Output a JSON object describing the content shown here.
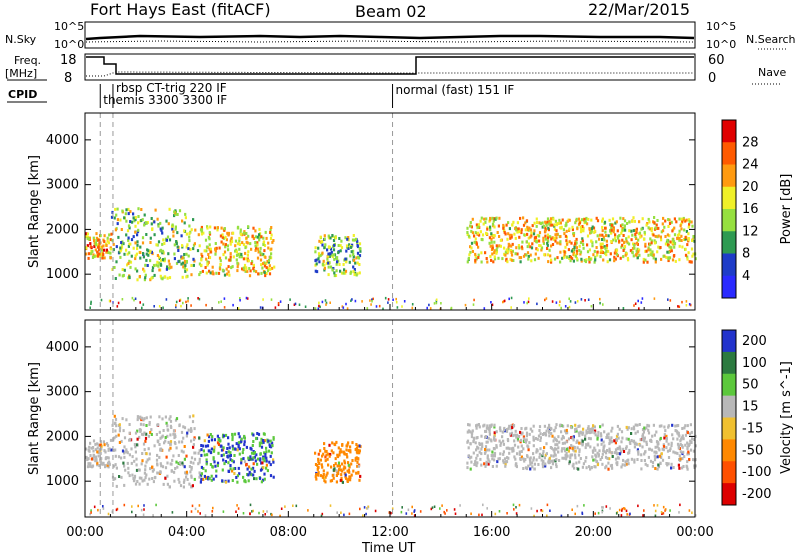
{
  "header": {
    "station": "Fort Hays East (fitACF)",
    "beam": "Beam 02",
    "date": "22/Mar/2015"
  },
  "panels": {
    "nsky_label": "N.Sky",
    "nsearch_label": "N.Search",
    "nsky_ticks": [
      "10^5",
      "10^0"
    ],
    "nsearch_ticks": [
      "10^5",
      "10^0"
    ],
    "freq_label_1": "Freq.",
    "freq_label_2": "[MHz]",
    "freq_ticks": [
      "18",
      "8"
    ],
    "nave_label": "Nave",
    "nave_ticks": [
      "60",
      "0"
    ],
    "cpid_label": "CPID",
    "cpid_modes": [
      {
        "text": "rbsp CT-trig 220 IF",
        "start_hour": 1.1
      },
      {
        "text": "themis 3300 3300 IF",
        "start_hour": 0.6
      },
      {
        "text": "normal (fast) 151 IF",
        "start_hour": 12.1
      }
    ]
  },
  "colors": {
    "power": [
      "#2a2aff",
      "#1e3cc8",
      "#2e9a52",
      "#96e040",
      "#f0f028",
      "#ff9a10",
      "#ff5a00",
      "#e00000"
    ],
    "velocity": [
      "#2233cc",
      "#2c7a40",
      "#5cc83c",
      "#b8b8b8",
      "#f0c030",
      "#ff8800",
      "#ff5000",
      "#dd0000"
    ]
  },
  "chart_data": [
    {
      "type": "heatmap",
      "title": "Power",
      "xlabel": "",
      "ylabel": "Slant Range [km]",
      "xlim": [
        0,
        24
      ],
      "ylim": [
        200,
        4600
      ],
      "x_tick_labels": [
        "00:00",
        "04:00",
        "08:00",
        "12:00",
        "16:00",
        "20:00",
        "00:00"
      ],
      "y_tick_labels": [
        "1000",
        "2000",
        "3000",
        "4000"
      ],
      "y_ticks": [
        1000,
        2000,
        3000,
        4000
      ],
      "colorbar_label": "Power [dB]",
      "colorbar_ticks": [
        "4",
        "8",
        "12",
        "16",
        "20",
        "24",
        "28"
      ],
      "echo_bands": [
        {
          "t0": 0.0,
          "t1": 1.0,
          "r0": 1350,
          "r1": 1950,
          "level": 0.65
        },
        {
          "t0": 1.0,
          "t1": 4.3,
          "r0": 900,
          "r1": 2500,
          "level": 0.45
        },
        {
          "t0": 4.4,
          "t1": 7.4,
          "r0": 1000,
          "r1": 2100,
          "level": 0.6
        },
        {
          "t0": 9.0,
          "t1": 10.8,
          "r0": 1000,
          "r1": 1900,
          "level": 0.4
        },
        {
          "t0": 15.0,
          "t1": 24.0,
          "r0": 1300,
          "r1": 2300,
          "level": 0.6
        }
      ]
    },
    {
      "type": "heatmap",
      "title": "Velocity",
      "xlabel": "Time UT",
      "ylabel": "Slant Range [km]",
      "xlim": [
        0,
        24
      ],
      "ylim": [
        200,
        4600
      ],
      "x_tick_labels": [
        "00:00",
        "04:00",
        "08:00",
        "12:00",
        "16:00",
        "20:00",
        "00:00"
      ],
      "y_tick_labels": [
        "1000",
        "2000",
        "3000",
        "4000"
      ],
      "y_ticks": [
        1000,
        2000,
        3000,
        4000
      ],
      "colorbar_label": "Velocity [m s^-1]",
      "colorbar_ticks": [
        "200",
        "100",
        "50",
        "15",
        "-15",
        "-50",
        "-100",
        "-200"
      ]
    }
  ]
}
